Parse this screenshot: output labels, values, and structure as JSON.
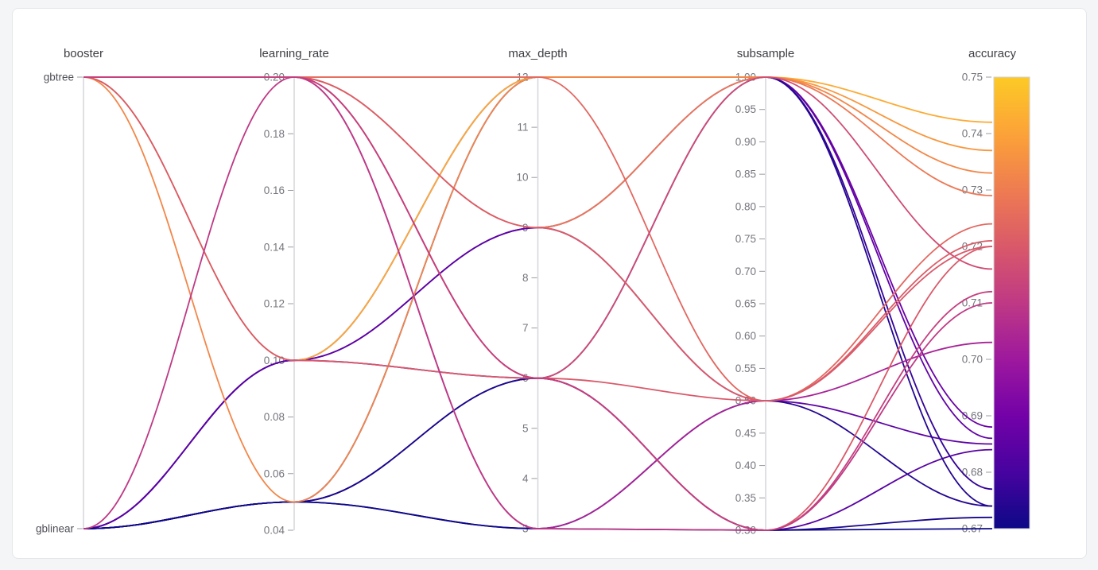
{
  "page": {
    "background_color": "#f4f5f7",
    "card_background": "#ffffff",
    "card_border_color": "#e4e6e9"
  },
  "chart_data": {
    "type": "parallel_coordinates",
    "description": "Hyperparameter search trials (parallel coordinates), line color encodes accuracy via plasma colorscale",
    "legend_position": "right-colorbar",
    "grid": false,
    "axes": [
      {
        "name": "booster",
        "kind": "categorical",
        "tick_labels": [
          "gbtree",
          "gblinear"
        ]
      },
      {
        "name": "learning_rate",
        "kind": "numeric",
        "top_value": 0.2,
        "bottom_value": 0.04,
        "tick_labels": [
          "0.20",
          "0.18",
          "0.16",
          "0.14",
          "0.12",
          "0.10",
          "0.08",
          "0.06",
          "0.04"
        ]
      },
      {
        "name": "max_depth",
        "kind": "numeric",
        "top_value": 12,
        "bottom_value": 3,
        "tick_labels": [
          "12",
          "11",
          "10",
          "9",
          "8",
          "7",
          "6",
          "5",
          "4",
          "3"
        ]
      },
      {
        "name": "subsample",
        "kind": "numeric",
        "top_value": 1.0,
        "bottom_value": 0.3,
        "tick_labels": [
          "1.00",
          "0.95",
          "0.90",
          "0.85",
          "0.80",
          "0.75",
          "0.70",
          "0.65",
          "0.60",
          "0.55",
          "0.50",
          "0.45",
          "0.40",
          "0.35",
          "0.30"
        ]
      },
      {
        "name": "accuracy",
        "kind": "numeric",
        "top_value": 0.75,
        "bottom_value": 0.67,
        "tick_labels": [
          "0.75",
          "0.74",
          "0.73",
          "0.72",
          "0.71",
          "0.70",
          "0.69",
          "0.68",
          "0.67"
        ]
      }
    ],
    "color_axis": {
      "name": "accuracy",
      "min": 0.67,
      "max": 0.75,
      "colorscale_name": "plasma",
      "colorbar_top_color": "#fdca26",
      "colorbar_bottom_color": "#0d0887",
      "gradient_stops_top_to_bottom": [
        {
          "offset": 0,
          "color": "#fdca26"
        },
        {
          "offset": 13.6,
          "color": "#fb9f3a"
        },
        {
          "offset": 25.9,
          "color": "#ed7953"
        },
        {
          "offset": 38.2,
          "color": "#d8576b"
        },
        {
          "offset": 50.7,
          "color": "#bd3786"
        },
        {
          "offset": 63.0,
          "color": "#9c179e"
        },
        {
          "offset": 75.3,
          "color": "#7201a8"
        },
        {
          "offset": 87.7,
          "color": "#46039f"
        },
        {
          "offset": 100,
          "color": "#0d0887"
        }
      ],
      "line_color_anchors": [
        {
          "t": 0.0,
          "color": "#0d0887"
        },
        {
          "t": 0.111,
          "color": "#46039f"
        },
        {
          "t": 0.222,
          "color": "#7201a8"
        },
        {
          "t": 0.333,
          "color": "#9c179e"
        },
        {
          "t": 0.444,
          "color": "#bd3786"
        },
        {
          "t": 0.556,
          "color": "#d8576b"
        },
        {
          "t": 0.667,
          "color": "#ed7953"
        },
        {
          "t": 0.778,
          "color": "#fb9f3a"
        },
        {
          "t": 0.889,
          "color": "#fdca26"
        },
        {
          "t": 1.0,
          "color": "#f0f921"
        }
      ],
      "color_domain_fraction_of_scale": 0.9
    },
    "trials": [
      {
        "booster": "gblinear",
        "learning_rate": 0.1,
        "max_depth": 12,
        "subsample": 1.0,
        "accuracy": 0.688
      },
      {
        "booster": "gblinear",
        "learning_rate": 0.1,
        "max_depth": 9,
        "subsample": 1.0,
        "accuracy": 0.686
      },
      {
        "booster": "gblinear",
        "learning_rate": 0.1,
        "max_depth": 9,
        "subsample": 0.5,
        "accuracy": 0.685
      },
      {
        "booster": "gblinear",
        "learning_rate": 0.1,
        "max_depth": 6,
        "subsample": 0.3,
        "accuracy": 0.684
      },
      {
        "booster": "gblinear",
        "learning_rate": 0.05,
        "max_depth": 6,
        "subsample": 1.0,
        "accuracy": 0.677
      },
      {
        "booster": "gblinear",
        "learning_rate": 0.05,
        "max_depth": 12,
        "subsample": 1.0,
        "accuracy": 0.674
      },
      {
        "booster": "gblinear",
        "learning_rate": 0.05,
        "max_depth": 3,
        "subsample": 0.5,
        "accuracy": 0.674
      },
      {
        "booster": "gblinear",
        "learning_rate": 0.05,
        "max_depth": 6,
        "subsample": 0.3,
        "accuracy": 0.672
      },
      {
        "booster": "gblinear",
        "learning_rate": 0.05,
        "max_depth": 3,
        "subsample": 0.3,
        "accuracy": 0.67
      },
      {
        "booster": "gbtree",
        "learning_rate": 0.1,
        "max_depth": 12,
        "subsample": 1.0,
        "accuracy": 0.742
      },
      {
        "booster": "gbtree",
        "learning_rate": 0.2,
        "max_depth": 12,
        "subsample": 1.0,
        "accuracy": 0.737
      },
      {
        "booster": "gbtree",
        "learning_rate": 0.05,
        "max_depth": 12,
        "subsample": 1.0,
        "accuracy": 0.733
      },
      {
        "booster": "gbtree",
        "learning_rate": 0.2,
        "max_depth": 9,
        "subsample": 1.0,
        "accuracy": 0.729
      },
      {
        "booster": "gbtree",
        "learning_rate": 0.2,
        "max_depth": 12,
        "subsample": 0.5,
        "accuracy": 0.724
      },
      {
        "booster": "gbtree",
        "learning_rate": 0.2,
        "max_depth": 6,
        "subsample": 1.0,
        "accuracy": 0.716
      },
      {
        "booster": "gbtree",
        "learning_rate": 0.2,
        "max_depth": 3,
        "subsample": 0.5,
        "accuracy": 0.703
      },
      {
        "booster": "gbtree",
        "learning_rate": 0.2,
        "max_depth": 9,
        "subsample": 0.5,
        "accuracy": 0.721
      },
      {
        "booster": "gbtree",
        "learning_rate": 0.2,
        "max_depth": 6,
        "subsample": 0.5,
        "accuracy": 0.72
      },
      {
        "booster": "gbtree",
        "learning_rate": 0.1,
        "max_depth": 6,
        "subsample": 0.3,
        "accuracy": 0.72
      },
      {
        "booster": "gblinear",
        "learning_rate": 0.2,
        "max_depth": 3,
        "subsample": 0.3,
        "accuracy": 0.71
      },
      {
        "booster": "gbtree",
        "learning_rate": 0.2,
        "max_depth": 6,
        "subsample": 0.3,
        "accuracy": 0.712
      }
    ],
    "styles": {
      "axis_line_color": "#d5d6db",
      "tick_mark_color": "#9b9ca3",
      "tick_label_color": "#75767e",
      "category_label_color": "#4f5058",
      "axis_title_color": "#3d3e44",
      "trial_line_width": 1.8,
      "colorbar_outline_color": "#d0d1d6"
    }
  }
}
